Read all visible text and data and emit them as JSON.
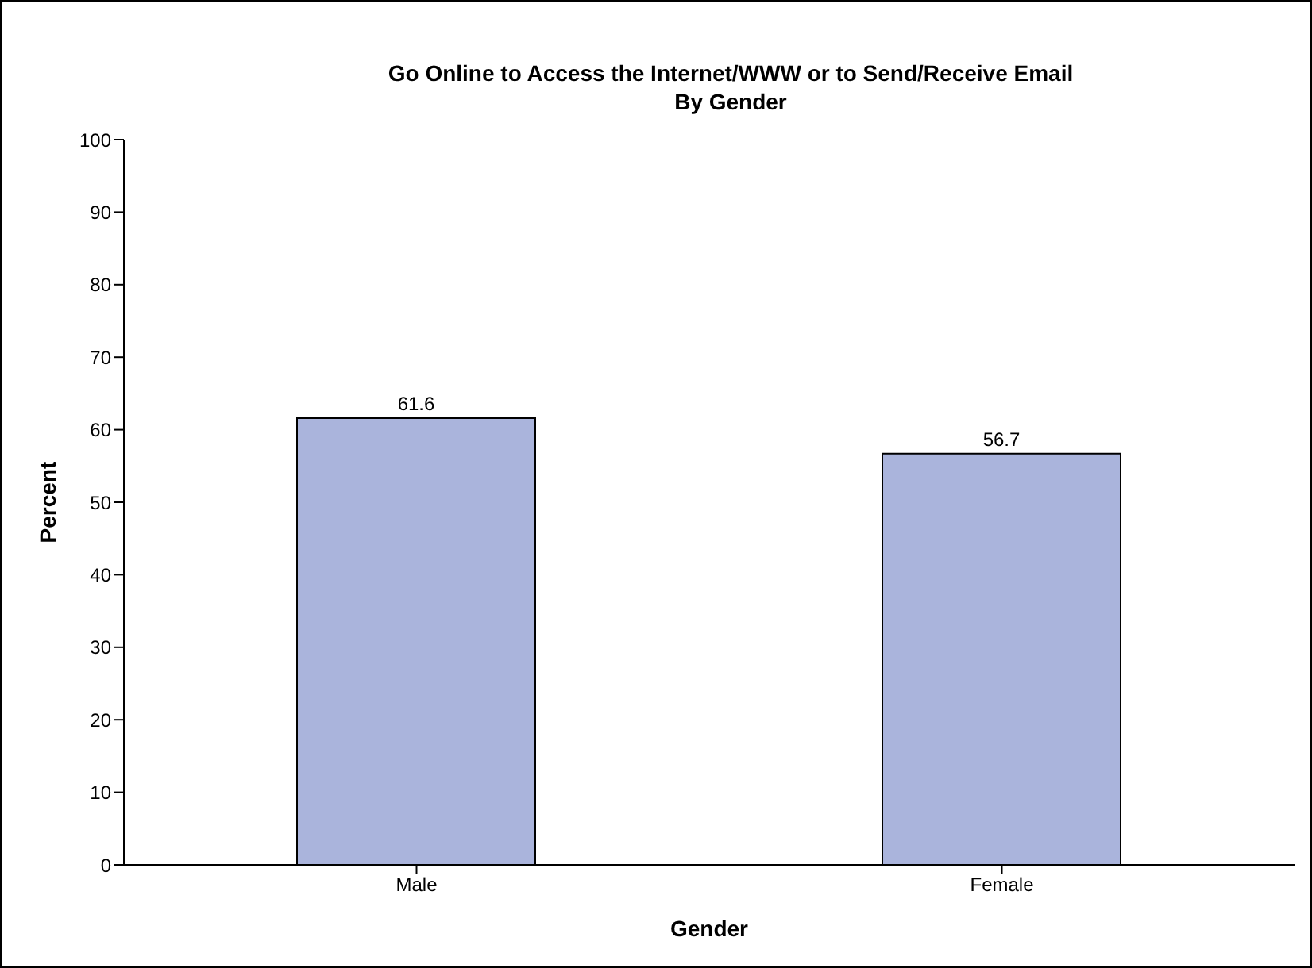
{
  "chart_data": {
    "type": "bar",
    "title": "Go Online to Access the Internet/WWW or to Send/Receive Email",
    "subtitle": "By Gender",
    "xlabel": "Gender",
    "ylabel": "Percent",
    "categories": [
      "Male",
      "Female"
    ],
    "series": [
      {
        "color": "#aab4dc",
        "values": [
          61.6,
          56.7
        ]
      }
    ],
    "ylim": [
      0,
      100
    ],
    "yticks": [
      0,
      10,
      20,
      30,
      40,
      50,
      60,
      70,
      80,
      90,
      100
    ],
    "grid": false,
    "legend": false,
    "data_labels": true
  }
}
